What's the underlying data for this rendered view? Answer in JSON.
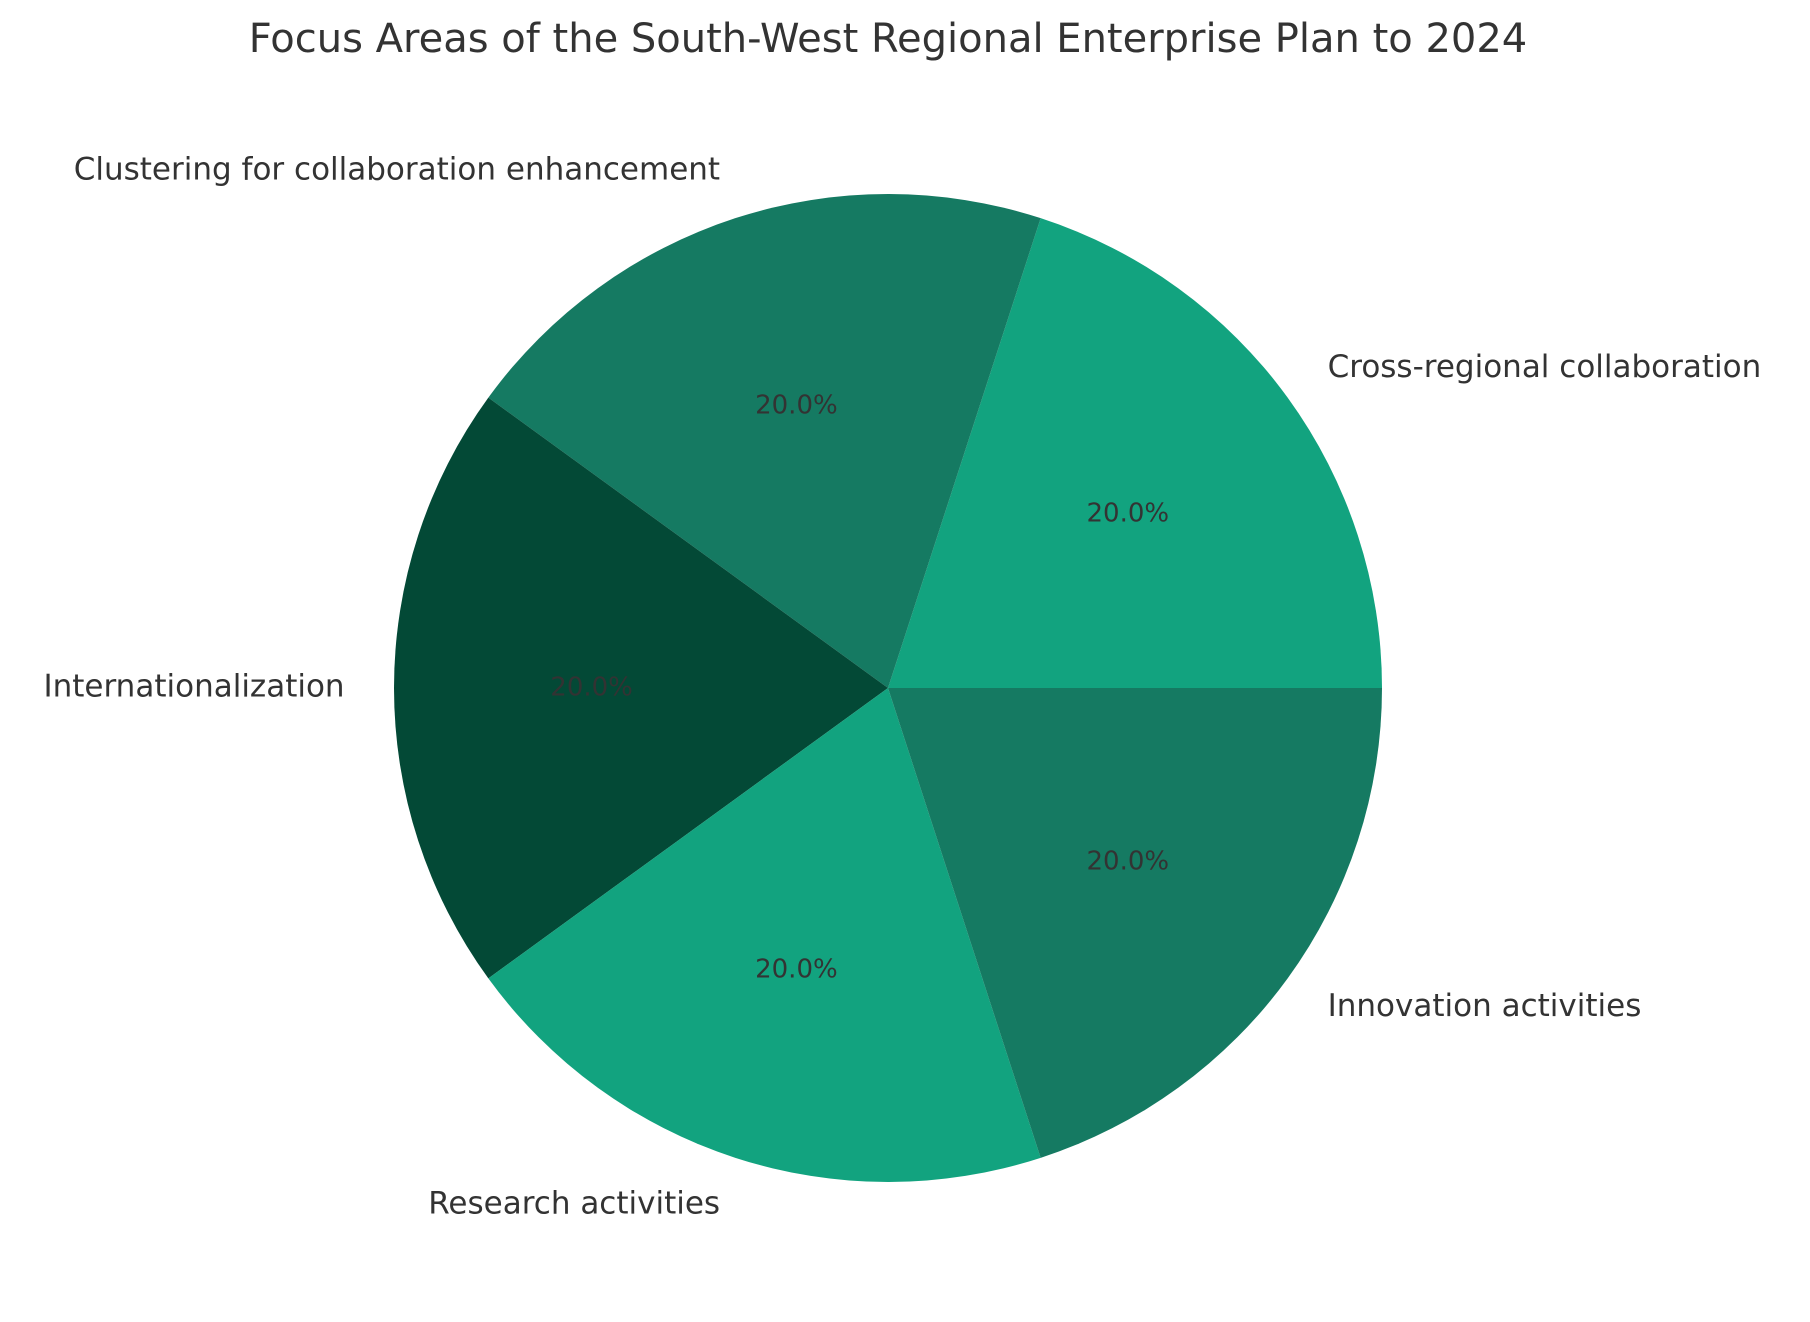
{
  "chart_data": {
    "type": "pie",
    "title": "Focus Areas of the South-West Regional Enterprise Plan to 2024",
    "slices": [
      {
        "label": "Cross-regional collaboration",
        "value": 20.0,
        "pct_label": "20.0%",
        "color": "#12a37f"
      },
      {
        "label": "Clustering for collaboration enhancement",
        "value": 20.0,
        "pct_label": "20.0%",
        "color": "#157a62"
      },
      {
        "label": "Internationalization",
        "value": 20.0,
        "pct_label": "20.0%",
        "color": "#034936"
      },
      {
        "label": "Research activities",
        "value": 20.0,
        "pct_label": "20.0%",
        "color": "#12a37f"
      },
      {
        "label": "Innovation activities",
        "value": 20.0,
        "pct_label": "20.0%",
        "color": "#157a62"
      }
    ],
    "start_angle": 0,
    "direction": "counterclockwise"
  }
}
